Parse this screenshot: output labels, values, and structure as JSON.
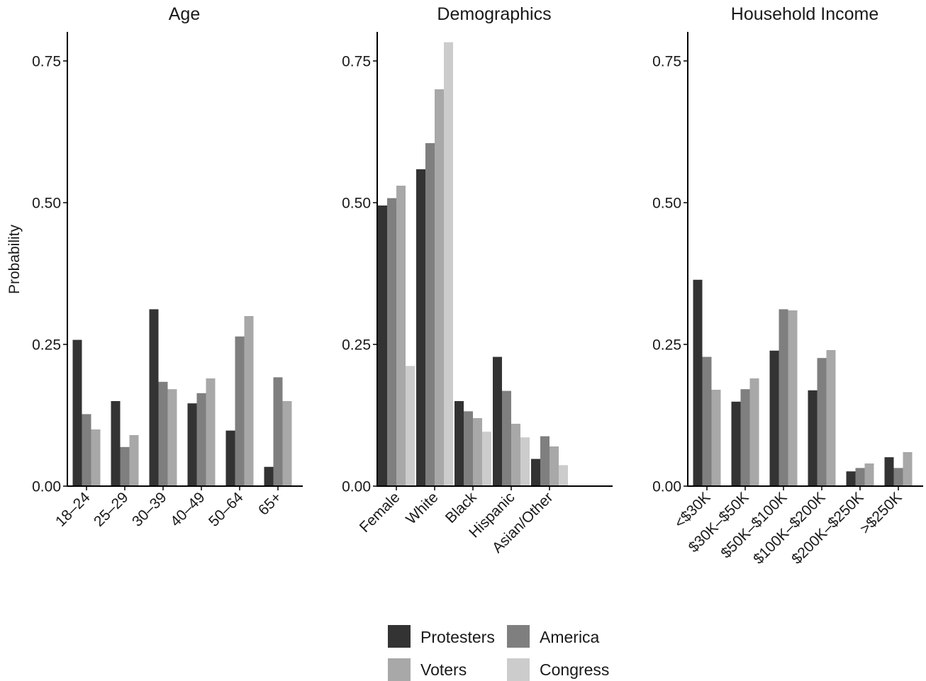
{
  "ylabel": "Probability",
  "colors": {
    "Protesters": "#333333",
    "America": "#7f7f7f",
    "Voters": "#a8a8a8",
    "Congress": "#cccccc"
  },
  "legend": {
    "placement": "bottom",
    "items": [
      "Protesters",
      "America",
      "Voters",
      "Congress"
    ]
  },
  "chart_data": [
    {
      "type": "bar",
      "title": "Age",
      "ylabel": "Probability",
      "ylim": [
        0,
        0.8
      ],
      "yticks": [
        "0.00",
        "0.25",
        "0.50",
        "0.75"
      ],
      "categories": [
        "18–24",
        "25–29",
        "30–39",
        "40–49",
        "50–64",
        "65+"
      ],
      "series": [
        {
          "name": "Protesters",
          "values": [
            0.258,
            0.15,
            0.312,
            0.146,
            0.098,
            0.034
          ]
        },
        {
          "name": "America",
          "values": [
            0.127,
            0.069,
            0.184,
            0.164,
            0.264,
            0.192
          ]
        },
        {
          "name": "Voters",
          "values": [
            0.1,
            0.09,
            0.171,
            0.19,
            0.3,
            0.15
          ]
        }
      ]
    },
    {
      "type": "bar",
      "title": "Demographics",
      "ylim": [
        0,
        0.8
      ],
      "yticks": [
        "0.00",
        "0.25",
        "0.50",
        "0.75"
      ],
      "categories": [
        "Female",
        "White",
        "Black",
        "Hispanic",
        "Asian/Other"
      ],
      "series": [
        {
          "name": "Protesters",
          "values": [
            0.495,
            0.559,
            0.15,
            0.228,
            0.048
          ]
        },
        {
          "name": "America",
          "values": [
            0.508,
            0.605,
            0.132,
            0.168,
            0.088
          ]
        },
        {
          "name": "Voters",
          "values": [
            0.53,
            0.7,
            0.12,
            0.11,
            0.07
          ]
        },
        {
          "name": "Congress",
          "values": [
            0.212,
            0.783,
            0.096,
            0.086,
            0.037
          ]
        }
      ]
    },
    {
      "type": "bar",
      "title": "Household Income",
      "ylim": [
        0,
        0.8
      ],
      "yticks": [
        "0.00",
        "0.25",
        "0.50",
        "0.75"
      ],
      "categories": [
        "<$30K",
        "$30K–$50K",
        "$50K–$100K",
        "$100K–$200K",
        "$200K–$250K",
        ">$250K"
      ],
      "series": [
        {
          "name": "Protesters",
          "values": [
            0.364,
            0.149,
            0.239,
            0.169,
            0.026,
            0.051
          ]
        },
        {
          "name": "America",
          "values": [
            0.228,
            0.171,
            0.312,
            0.226,
            0.032,
            0.032
          ]
        },
        {
          "name": "Voters",
          "values": [
            0.17,
            0.19,
            0.31,
            0.24,
            0.04,
            0.06
          ]
        }
      ]
    }
  ]
}
